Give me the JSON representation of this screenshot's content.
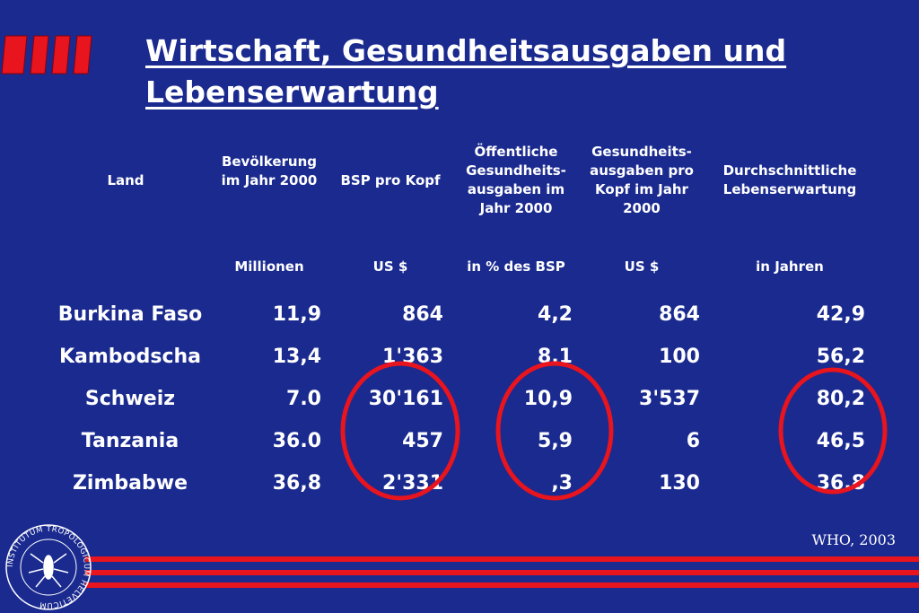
{
  "title": "Wirtschaft, Gesundheitsausgaben und Lebenserwartung",
  "headers": {
    "land": "Land",
    "bevoelkerung": "Bevölkerung im Jahr 2000",
    "bsp": "BSP pro Kopf",
    "oeffentlich": "Öffentliche Gesundheits-ausgaben im Jahr 2000",
    "gesundheit": "Gesundheits-ausgaben pro Kopf im Jahr 2000",
    "lebenserwartung": "Durchschnittliche Lebenserwartung"
  },
  "units": {
    "bevoelkerung": "Millionen",
    "bsp": "US $",
    "oeffentlich": "in % des BSP",
    "gesundheit": "US $",
    "lebenserwartung": "in Jahren"
  },
  "rows": [
    {
      "land": "Burkina Faso",
      "bev": "11,9",
      "bsp": "864",
      "oeff": "4,2",
      "ges": "864",
      "leb": "42,9"
    },
    {
      "land": "Kambodscha",
      "bev": "13,4",
      "bsp": "1'363",
      "oeff": "8,1",
      "ges": "100",
      "leb": "56,2"
    },
    {
      "land": "Schweiz",
      "bev": "7.0",
      "bsp": "30'161",
      "oeff": "10,9",
      "ges": "3'537",
      "leb": "80,2"
    },
    {
      "land": "Tanzania",
      "bev": "36.0",
      "bsp": "457",
      "oeff": "5,9",
      "ges": "6",
      "leb": "46,5"
    },
    {
      "land": "Zimbabwe",
      "bev": "36,8",
      "bsp": "2'331",
      "oeff": ",3",
      "ges": "130",
      "leb": "36,8"
    }
  ],
  "source": "WHO, 2003",
  "seal_text": "INSTITUTUM TROPOLOGICUM HELVETICUM",
  "colors": {
    "background": "#1a2a8f",
    "accent": "#e8141e",
    "text": "#ffffff"
  }
}
